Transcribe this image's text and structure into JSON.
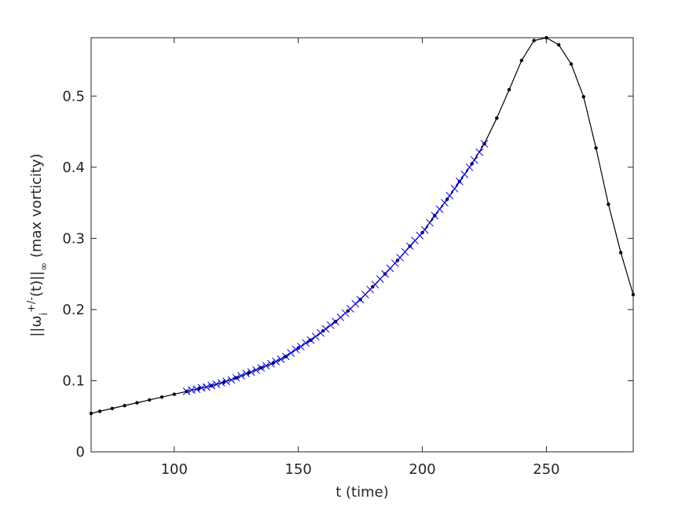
{
  "chart_data": {
    "type": "line",
    "x_label": "t (time)",
    "y_label": [
      "||ω",
      "i",
      "+/-",
      "(t)||",
      "∞",
      " (max vorticity)"
    ],
    "xlim": [
      66.5,
      285
    ],
    "ylim": [
      0,
      0.582
    ],
    "xticks": [
      100,
      150,
      200,
      250
    ],
    "yticks": [
      0,
      0.1,
      0.2,
      0.3,
      0.4,
      0.5
    ],
    "series": [
      {
        "color": "#000000",
        "marker": "dot",
        "x": [
          66.5,
          70,
          75,
          80,
          85,
          90,
          95,
          100,
          105,
          110,
          115,
          120,
          125,
          130,
          135,
          140,
          145,
          150,
          155,
          160,
          165,
          170,
          175,
          180,
          185,
          190,
          195,
          200,
          205,
          210,
          215,
          220,
          225,
          230,
          235,
          240,
          245,
          250,
          255,
          260,
          265,
          270,
          275,
          280,
          285
        ],
        "values": [
          0.054,
          0.057,
          0.061,
          0.065,
          0.069,
          0.073,
          0.077,
          0.081,
          0.085,
          0.089,
          0.093,
          0.098,
          0.104,
          0.111,
          0.118,
          0.125,
          0.134,
          0.146,
          0.157,
          0.17,
          0.183,
          0.198,
          0.214,
          0.232,
          0.25,
          0.269,
          0.289,
          0.308,
          0.332,
          0.355,
          0.38,
          0.405,
          0.433,
          0.469,
          0.509,
          0.55,
          0.578,
          0.582,
          0.572,
          0.545,
          0.499,
          0.427,
          0.348,
          0.28,
          0.221
        ]
      },
      {
        "color": "#0000ff",
        "marker": "x",
        "x": [
          105,
          107,
          109,
          111,
          113,
          115,
          117,
          119,
          121,
          123,
          125,
          127,
          129,
          131,
          133,
          135,
          137,
          139,
          141,
          143,
          145,
          147,
          149,
          151,
          153,
          155,
          157,
          159,
          161,
          163,
          165,
          167,
          169,
          171,
          173,
          175,
          177,
          179,
          181,
          183,
          185,
          187,
          189,
          191,
          193,
          195,
          197,
          199,
          201,
          203,
          205,
          207,
          209,
          211,
          213,
          215,
          217,
          219,
          221,
          223,
          225
        ],
        "values": [
          0.085,
          0.087,
          0.088,
          0.09,
          0.091,
          0.093,
          0.095,
          0.097,
          0.099,
          0.101,
          0.104,
          0.107,
          0.11,
          0.112,
          0.115,
          0.118,
          0.121,
          0.124,
          0.127,
          0.13,
          0.134,
          0.139,
          0.144,
          0.148,
          0.153,
          0.157,
          0.162,
          0.167,
          0.173,
          0.178,
          0.183,
          0.189,
          0.195,
          0.201,
          0.208,
          0.214,
          0.221,
          0.228,
          0.235,
          0.243,
          0.25,
          0.258,
          0.265,
          0.273,
          0.281,
          0.289,
          0.297,
          0.304,
          0.312,
          0.322,
          0.332,
          0.341,
          0.35,
          0.36,
          0.37,
          0.38,
          0.39,
          0.4,
          0.41,
          0.421,
          0.433
        ]
      }
    ]
  }
}
